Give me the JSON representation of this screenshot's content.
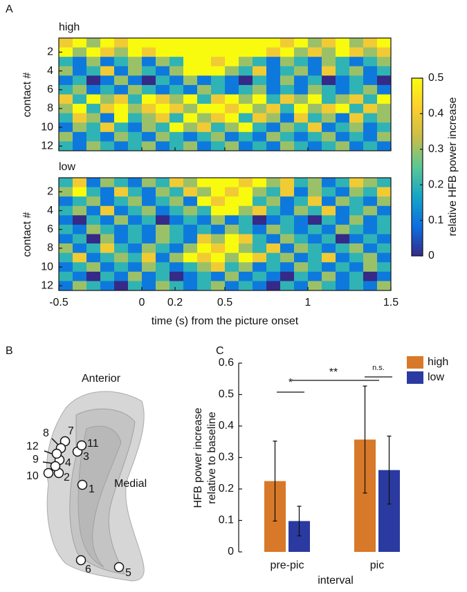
{
  "chart_data": [
    {
      "type": "heatmap",
      "panel_label": "A",
      "ylabel": "contact #",
      "xlabel": "time (s) from the picture onset",
      "xlim": [
        -0.5,
        1.5
      ],
      "xticks": [
        -0.5,
        0,
        0.2,
        0.5,
        1,
        1.5
      ],
      "ylim": [
        0.5,
        12.5
      ],
      "yticks": [
        2,
        4,
        6,
        8,
        10,
        12
      ],
      "zlim": [
        0,
        0.5
      ],
      "zticks": [
        0,
        0.1,
        0.2,
        0.3,
        0.4,
        0.5
      ],
      "colorbar_label": "relative HFB power increase",
      "colormap": [
        "#352a87",
        "#0d6ee2",
        "#14a5c8",
        "#5ac795",
        "#c7bd4a",
        "#fcce2e",
        "#f9fb0e"
      ],
      "panels": [
        {
          "title": "high",
          "values": [
            [
              0.4,
              0.5,
              0.3,
              0.5,
              0.4,
              0.5,
              0.5,
              0.5,
              0.5,
              0.5,
              0.5,
              0.5,
              0.5,
              0.5,
              0.5,
              0.5,
              0.4,
              0.5,
              0.3,
              0.4,
              0.5,
              0.3,
              0.4,
              0.5
            ],
            [
              0.5,
              0.3,
              0.5,
              0.4,
              0.3,
              0.5,
              0.4,
              0.5,
              0.5,
              0.5,
              0.5,
              0.5,
              0.5,
              0.5,
              0.5,
              0.4,
              0.5,
              0.3,
              0.4,
              0.3,
              0.5,
              0.4,
              0.3,
              0.4
            ],
            [
              0.2,
              0.1,
              0.3,
              0.1,
              0.2,
              0.3,
              0.1,
              0.3,
              0.2,
              0.5,
              0.5,
              0.4,
              0.5,
              0.3,
              0.2,
              0.1,
              0.3,
              0.2,
              0.1,
              0.3,
              0.2,
              0.1,
              0.2,
              0.3
            ],
            [
              0.3,
              0.1,
              0.2,
              0.4,
              0.1,
              0.3,
              0.2,
              0.1,
              0.3,
              0.5,
              0.5,
              0.5,
              0.3,
              0.2,
              0.4,
              0.1,
              0.2,
              0.3,
              0.1,
              0.4,
              0.2,
              0.3,
              0.1,
              0.2
            ],
            [
              0.1,
              0.2,
              0,
              0.1,
              0.3,
              0.1,
              0,
              0.2,
              0.1,
              0.3,
              0.1,
              0.2,
              0.1,
              0,
              0.2,
              0.1,
              0.3,
              0.1,
              0.2,
              0,
              0.1,
              0.2,
              0.1,
              0
            ],
            [
              0.2,
              0.3,
              0.1,
              0.2,
              0.1,
              0.3,
              0.2,
              0.1,
              0.2,
              0.1,
              0.3,
              0.2,
              0.1,
              0.2,
              0.3,
              0.1,
              0.2,
              0.1,
              0.3,
              0.2,
              0.1,
              0.2,
              0.3,
              0.1
            ],
            [
              0.4,
              0.2,
              0.5,
              0.3,
              0.4,
              0.2,
              0.5,
              0.4,
              0.3,
              0.5,
              0.2,
              0.4,
              0.5,
              0.3,
              0.5,
              0.2,
              0.4,
              0.3,
              0.5,
              0.2,
              0.3,
              0.4,
              0.2,
              0.5
            ],
            [
              0.3,
              0.5,
              0.2,
              0.4,
              0.5,
              0.3,
              0.4,
              0.5,
              0.4,
              0.3,
              0.5,
              0.5,
              0.4,
              0.5,
              0.3,
              0.4,
              0.2,
              0.5,
              0.3,
              0.4,
              0.5,
              0.2,
              0.4,
              0.3
            ],
            [
              0.2,
              0.4,
              0.3,
              0.1,
              0.5,
              0.2,
              0.3,
              0.4,
              0.2,
              0.5,
              0.3,
              0.4,
              0.5,
              0.2,
              0.4,
              0.3,
              0.1,
              0.4,
              0.2,
              0.3,
              0.1,
              0.4,
              0.2,
              0.3
            ],
            [
              0.1,
              0.3,
              0.2,
              0.4,
              0.2,
              0.1,
              0.3,
              0.2,
              0.5,
              0.3,
              0.4,
              0.2,
              0.3,
              0.5,
              0.2,
              0.1,
              0.3,
              0.2,
              0.4,
              0.1,
              0.2,
              0.3,
              0.1,
              0.2
            ],
            [
              0.3,
              0.1,
              0.2,
              0.1,
              0.3,
              0.2,
              0.1,
              0.3,
              0.2,
              0.1,
              0.2,
              0.3,
              0.1,
              0.2,
              0.1,
              0.3,
              0.2,
              0.1,
              0.2,
              0.3,
              0.1,
              0.2,
              0.1,
              0.3
            ],
            [
              0.2,
              0.1,
              0.3,
              0.2,
              0.1,
              0.2,
              0.3,
              0.1,
              0.2,
              0.3,
              0.1,
              0.2,
              0.3,
              0.1,
              0.2,
              0.1,
              0.3,
              0.2,
              0.1,
              0.2,
              0.3,
              0.1,
              0.2,
              0.1
            ]
          ]
        },
        {
          "title": "low",
          "values": [
            [
              0.2,
              0.4,
              0.1,
              0.3,
              0.2,
              0.1,
              0.3,
              0.2,
              0.4,
              0.3,
              0.5,
              0.5,
              0.5,
              0.4,
              0.5,
              0.3,
              0.4,
              0.2,
              0.3,
              0.1,
              0.2,
              0.4,
              0.3,
              0.2
            ],
            [
              0.3,
              0.5,
              0.2,
              0.1,
              0.4,
              0.2,
              0.1,
              0.3,
              0.2,
              0.4,
              0.3,
              0.5,
              0.4,
              0.5,
              0.3,
              0.2,
              0.4,
              0.1,
              0.3,
              0.2,
              0.1,
              0.3,
              0.2,
              0.4
            ],
            [
              0.1,
              0.2,
              0.3,
              0.1,
              0.2,
              0.3,
              0.1,
              0.2,
              0.3,
              0.1,
              0.5,
              0.4,
              0.5,
              0.5,
              0.2,
              0.3,
              0.1,
              0.2,
              0.4,
              0.1,
              0.3,
              0.2,
              0.1,
              0.3
            ],
            [
              0.2,
              0.3,
              0.1,
              0.4,
              0.1,
              0.2,
              0.3,
              0.1,
              0.2,
              0.3,
              0.2,
              0.5,
              0.5,
              0.3,
              0.4,
              0.2,
              0.1,
              0.3,
              0.2,
              0.4,
              0.1,
              0.2,
              0.3,
              0.1
            ],
            [
              0.1,
              0,
              0.2,
              0.1,
              0.3,
              0.1,
              0.2,
              0,
              0.1,
              0.2,
              0.1,
              0.3,
              0.1,
              0.2,
              0,
              0.1,
              0.2,
              0.1,
              0,
              0.2,
              0.1,
              0.3,
              0.1,
              0.2
            ],
            [
              0.2,
              0.1,
              0.3,
              0.2,
              0.1,
              0.2,
              0.1,
              0.3,
              0.2,
              0.1,
              0.2,
              0.1,
              0.3,
              0.2,
              0.1,
              0.3,
              0.2,
              0.1,
              0.2,
              0.1,
              0.3,
              0.2,
              0.1,
              0.2
            ],
            [
              0.1,
              0.2,
              0,
              0.3,
              0.1,
              0.2,
              0.1,
              0.3,
              0.2,
              0.1,
              0.4,
              0.3,
              0.5,
              0.4,
              0.2,
              0.1,
              0.3,
              0.2,
              0.1,
              0.2,
              0,
              0.1,
              0.2,
              0.1
            ],
            [
              0.3,
              0.1,
              0.2,
              0.4,
              0.2,
              0.1,
              0.3,
              0.2,
              0.1,
              0.3,
              0.5,
              0.4,
              0.5,
              0.3,
              0.2,
              0.4,
              0.1,
              0.3,
              0.2,
              0.1,
              0.2,
              0.3,
              0.1,
              0.2
            ],
            [
              0.2,
              0.4,
              0.1,
              0.2,
              0.3,
              0.2,
              0.4,
              0.1,
              0.3,
              0.5,
              0.4,
              0.5,
              0.3,
              0.5,
              0.4,
              0.2,
              0.3,
              0.1,
              0.2,
              0.4,
              0.1,
              0.2,
              0.3,
              0.1
            ],
            [
              0.1,
              0.2,
              0.3,
              0.1,
              0.2,
              0.1,
              0.3,
              0.2,
              0.1,
              0.2,
              0.3,
              0.4,
              0.2,
              0.3,
              0.1,
              0.2,
              0.1,
              0.3,
              0.2,
              0.1,
              0.2,
              0.1,
              0.3,
              0.2
            ],
            [
              0.2,
              0.1,
              0,
              0.2,
              0.1,
              0.3,
              0.1,
              0.2,
              0,
              0.1,
              0.2,
              0.1,
              0.3,
              0.1,
              0.2,
              0.1,
              0,
              0.2,
              0.1,
              0.3,
              0.1,
              0.2,
              0,
              0.1
            ],
            [
              0.1,
              0.3,
              0.2,
              0.1,
              0,
              0.2,
              0.1,
              0.3,
              0.2,
              0.1,
              0.2,
              0.3,
              0.1,
              0.2,
              0.1,
              0,
              0.2,
              0.1,
              0.3,
              0.2,
              0.1,
              0.2,
              0.1,
              0.3
            ]
          ]
        }
      ]
    },
    {
      "type": "bar",
      "panel_label": "C",
      "xlabel": "interval",
      "ylabel": [
        "HFB power increase",
        "relative to baseline"
      ],
      "categories": [
        "pre-pic",
        "pic"
      ],
      "series": [
        {
          "name": "high",
          "color": "#d8792a",
          "values": [
            0.225,
            0.357
          ],
          "errors": [
            0.127,
            0.17
          ]
        },
        {
          "name": "low",
          "color": "#2a3aa0",
          "values": [
            0.098,
            0.26
          ],
          "errors": [
            0.047,
            0.108
          ]
        }
      ],
      "ylim": [
        0,
        0.6
      ],
      "yticks": [
        0,
        0.1,
        0.2,
        0.3,
        0.4,
        0.5,
        0.6
      ],
      "annotations": [
        "*",
        "**",
        "n.s."
      ]
    }
  ],
  "brain_diagram": {
    "panel_label": "B",
    "labels": [
      "Anterior",
      "Medial"
    ],
    "contacts": [
      "1",
      "2",
      "3",
      "4",
      "5",
      "6",
      "7",
      "8",
      "9",
      "10",
      "11",
      "12"
    ]
  }
}
